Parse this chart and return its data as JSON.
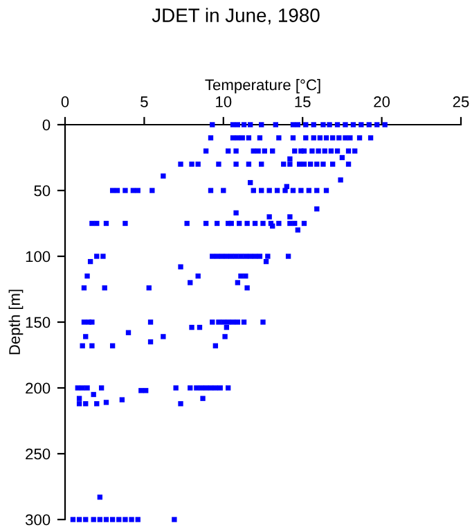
{
  "chart_data": {
    "type": "scatter",
    "title": "JDET in June, 1980",
    "xlabel": "Temperature [°C]",
    "ylabel": "Depth [m]",
    "xlim": [
      0,
      25
    ],
    "xticks": [
      0,
      5,
      10,
      15,
      20,
      25
    ],
    "ylim": [
      300,
      0
    ],
    "yticks": [
      0,
      50,
      100,
      150,
      200,
      250,
      300
    ],
    "grid": false,
    "legend": false,
    "marker": "square",
    "series": [
      {
        "color": "#0000ff",
        "x": [
          9.3,
          10.6,
          10.9,
          11.3,
          11.7,
          12.4,
          13.3,
          14.4,
          14.7,
          15.2,
          15.7,
          16.3,
          16.7,
          17.2,
          17.7,
          18.2,
          18.7,
          19.2,
          19.7,
          20.2,
          9.2,
          10.6,
          10.9,
          11.2,
          11.6,
          12.3,
          13.5,
          14.4,
          15.2,
          15.7,
          16.1,
          16.5,
          16.9,
          17.3,
          17.7,
          18.0,
          18.6,
          19.3,
          8.9,
          10.3,
          10.8,
          11.9,
          12.2,
          12.6,
          13.1,
          14.5,
          14.9,
          15.1,
          15.6,
          16.0,
          16.4,
          16.8,
          17.2,
          17.9,
          18.3,
          17.5,
          14.2,
          7.3,
          8.0,
          8.4,
          9.7,
          10.8,
          11.6,
          12.4,
          13.8,
          14.2,
          14.8,
          15.1,
          15.5,
          15.9,
          16.3,
          16.9,
          17.9,
          6.2,
          17.4,
          11.7,
          14.0,
          3.0,
          3.3,
          3.8,
          4.3,
          4.6,
          5.5,
          9.2,
          10.0,
          11.9,
          12.4,
          12.9,
          13.4,
          13.9,
          14.4,
          14.9,
          15.4,
          15.9,
          16.5,
          15.9,
          10.8,
          12.9,
          14.2,
          1.7,
          2.0,
          2.6,
          3.8,
          7.7,
          8.9,
          9.6,
          10.3,
          10.5,
          11.0,
          11.5,
          12.0,
          12.5,
          13.0,
          13.5,
          14.2,
          14.5,
          15.1,
          13.1,
          14.7,
          2.0,
          2.4,
          9.3,
          9.6,
          9.9,
          10.2,
          10.5,
          10.8,
          11.1,
          11.4,
          11.7,
          12.0,
          12.3,
          12.8,
          14.1,
          1.6,
          12.7,
          7.3,
          1.4,
          8.4,
          11.1,
          11.4,
          7.9,
          10.9,
          1.2,
          2.5,
          5.3,
          11.5,
          1.2,
          1.5,
          1.7,
          5.4,
          9.3,
          9.7,
          10.0,
          10.3,
          10.6,
          10.9,
          11.3,
          12.5,
          8.0,
          8.5,
          10.2,
          4.0,
          1.3,
          6.2,
          10.1,
          5.4,
          1.1,
          1.7,
          9.5,
          3.0,
          0.8,
          1.1,
          1.4,
          2.3,
          7.0,
          7.9,
          8.3,
          8.6,
          8.9,
          9.2,
          9.5,
          9.8,
          10.3,
          4.8,
          5.1,
          1.8,
          0.9,
          8.7,
          3.6,
          2.6,
          0.9,
          1.3,
          7.3,
          2.0,
          2.2,
          0.5,
          0.9,
          1.3,
          1.8,
          2.2,
          2.6,
          3.0,
          3.4,
          3.8,
          4.2,
          4.6,
          6.9
        ],
        "values": [
          0,
          0,
          0,
          0,
          0,
          0,
          0,
          0,
          0,
          0,
          0,
          0,
          0,
          0,
          0,
          0,
          0,
          0,
          0,
          0,
          10,
          10,
          10,
          10,
          10,
          10,
          10,
          10,
          10,
          10,
          10,
          10,
          10,
          10,
          10,
          10,
          10,
          10,
          20,
          20,
          20,
          20,
          20,
          20,
          20,
          20,
          20,
          20,
          20,
          20,
          20,
          20,
          20,
          20,
          20,
          25,
          26,
          30,
          30,
          30,
          30,
          30,
          30,
          30,
          30,
          30,
          30,
          30,
          30,
          30,
          30,
          30,
          30,
          39,
          42,
          44,
          47,
          50,
          50,
          50,
          50,
          50,
          50,
          50,
          50,
          50,
          50,
          50,
          50,
          50,
          50,
          50,
          50,
          50,
          50,
          64,
          67,
          70,
          70,
          75,
          75,
          75,
          75,
          75,
          75,
          75,
          75,
          75,
          75,
          75,
          75,
          75,
          75,
          75,
          75,
          75,
          75,
          77,
          80,
          100,
          100,
          100,
          100,
          100,
          100,
          100,
          100,
          100,
          100,
          100,
          100,
          100,
          100,
          100,
          104,
          104,
          108,
          115,
          115,
          115,
          115,
          120,
          120,
          124,
          124,
          124,
          124,
          150,
          150,
          150,
          150,
          150,
          150,
          150,
          150,
          150,
          150,
          150,
          150,
          154,
          154,
          154,
          158,
          161,
          161,
          161,
          165,
          168,
          168,
          168,
          168,
          200,
          200,
          200,
          200,
          200,
          200,
          200,
          200,
          200,
          200,
          200,
          200,
          200,
          202,
          202,
          205,
          208,
          208,
          209,
          211,
          212,
          212,
          212,
          212,
          283,
          300,
          300,
          300,
          300,
          300,
          300,
          300,
          300,
          300,
          300,
          300,
          300
        ]
      }
    ]
  }
}
